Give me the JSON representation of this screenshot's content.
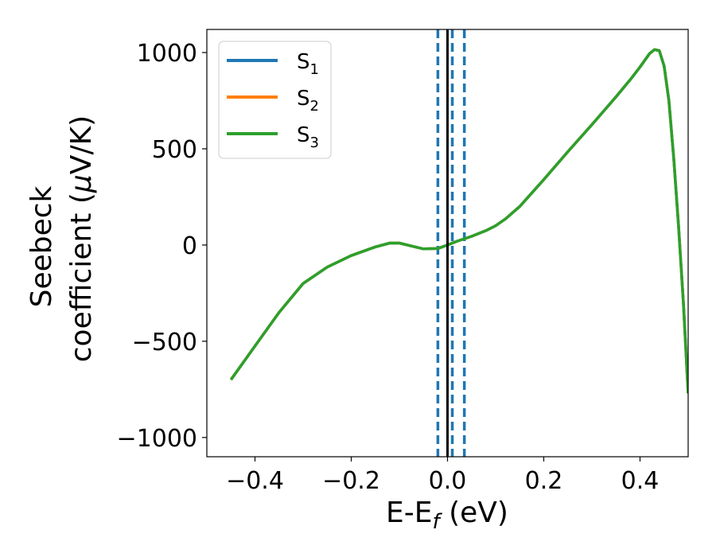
{
  "chart_data": {
    "type": "line",
    "xlabel": "E-E",
    "xlabel_sub": "f",
    "xlabel_unit": " (eV)",
    "ylabel_line1": "Seebeck",
    "ylabel_line2_prefix": "coefficient  (",
    "ylabel_mu": "μ",
    "ylabel_line2_suffix": "V/K)",
    "xlim": [
      -0.5,
      0.5
    ],
    "ylim": [
      -1100,
      1120
    ],
    "xticks": [
      -0.4,
      -0.2,
      0.0,
      0.2,
      0.4
    ],
    "xtick_labels": [
      "−0.4",
      "−0.2",
      "0.0",
      "0.2",
      "0.4"
    ],
    "yticks": [
      1000,
      500,
      0,
      -500,
      -1000
    ],
    "ytick_labels": [
      "1000",
      "500",
      "0",
      "−500",
      "−1000"
    ],
    "grid": false,
    "legend_position": "upper-left",
    "series": [
      {
        "name": "S",
        "sub": "1",
        "color": "#1f77b4"
      },
      {
        "name": "S",
        "sub": "2",
        "color": "#ff7f0e"
      },
      {
        "name": "S",
        "sub": "3",
        "color": "#2ca02c"
      }
    ],
    "x": [
      -0.45,
      -0.4,
      -0.35,
      -0.3,
      -0.25,
      -0.2,
      -0.15,
      -0.12,
      -0.1,
      -0.08,
      -0.05,
      -0.02,
      0.0,
      0.02,
      0.05,
      0.08,
      0.1,
      0.12,
      0.15,
      0.2,
      0.25,
      0.3,
      0.35,
      0.38,
      0.4,
      0.42,
      0.43,
      0.44,
      0.45,
      0.46,
      0.47,
      0.48,
      0.49,
      0.5
    ],
    "y": [
      -700,
      -525,
      -350,
      -200,
      -115,
      -55,
      -10,
      10,
      10,
      -2,
      -20,
      -18,
      0,
      20,
      45,
      75,
      100,
      135,
      200,
      340,
      485,
      625,
      770,
      860,
      925,
      995,
      1015,
      1010,
      930,
      750,
      450,
      100,
      -300,
      -770
    ],
    "reference_line_x": 0.0,
    "dashed_lines_x": [
      -0.02,
      0.01,
      0.035
    ]
  }
}
